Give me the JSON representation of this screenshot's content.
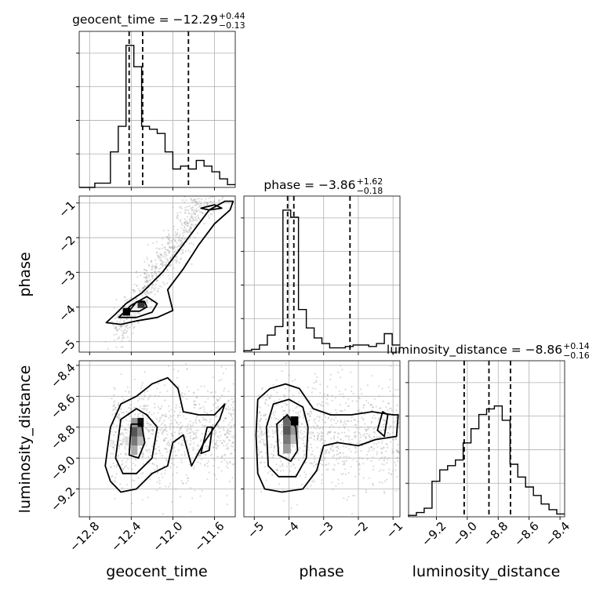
{
  "chart_data": {
    "type": "corner",
    "parameters": [
      "geocent_time",
      "phase",
      "luminosity_distance"
    ],
    "axis_labels": {
      "x": [
        "geocent_time",
        "phase",
        "luminosity_distance"
      ],
      "y": [
        "phase",
        "luminosity_distance"
      ]
    },
    "titles": [
      {
        "param": "geocent_time",
        "text": "geocent_time = −12.29",
        "median": -12.29,
        "plus": "+0.44",
        "minus": "−0.13"
      },
      {
        "param": "phase",
        "text": "phase = −3.86",
        "median": -3.86,
        "plus": "+1.62",
        "minus": "−0.18"
      },
      {
        "param": "luminosity_distance",
        "text": "luminosity_distance = −8.86",
        "median": -8.86,
        "plus": "+0.14",
        "minus": "−0.16"
      }
    ],
    "ranges": {
      "geocent_time": [
        -12.9,
        -11.4
      ],
      "phase": [
        -5.3,
        -0.8
      ],
      "luminosity_distance": [
        -9.38,
        -8.37
      ]
    },
    "ticks": {
      "geocent_time": {
        "values": [
          -12.8,
          -12.4,
          -12.0,
          -11.6
        ],
        "labels": [
          "−12.8",
          "−12.4",
          "−12.0",
          "−11.6"
        ]
      },
      "phase": {
        "values": [
          -5,
          -4,
          -3,
          -2,
          -1
        ],
        "labels": [
          "−5",
          "−4",
          "−3",
          "−2",
          "−1"
        ]
      },
      "luminosity_distance": {
        "values": [
          -9.2,
          -9.0,
          -8.8,
          -8.6,
          -8.4
        ],
        "labels": [
          "−9.2",
          "−9.0",
          "−8.8",
          "−8.6",
          "−8.4"
        ]
      }
    },
    "quantiles": {
      "geocent_time": [
        -12.42,
        -12.29,
        -11.85
      ],
      "phase": [
        -4.04,
        -3.86,
        -2.24
      ],
      "luminosity_distance": [
        -9.02,
        -8.86,
        -8.72
      ]
    },
    "histograms": {
      "geocent_time": {
        "edges": [
          -12.9,
          -12.825,
          -12.75,
          -12.675,
          -12.6,
          -12.525,
          -12.45,
          -12.375,
          -12.3,
          -12.225,
          -12.15,
          -12.075,
          -12.0,
          -11.925,
          -11.85,
          -11.775,
          -11.7,
          -11.625,
          -11.55,
          -11.475,
          -11.4
        ],
        "counts": [
          0.0,
          0.0,
          0.03,
          0.03,
          0.25,
          0.43,
          1.0,
          0.85,
          0.43,
          0.41,
          0.38,
          0.25,
          0.13,
          0.15,
          0.13,
          0.19,
          0.15,
          0.11,
          0.06,
          0.02
        ]
      },
      "phase": {
        "edges": [
          -5.3,
          -5.075,
          -4.85,
          -4.625,
          -4.4,
          -4.175,
          -3.95,
          -3.725,
          -3.5,
          -3.275,
          -3.05,
          -2.825,
          -2.6,
          -2.375,
          -2.15,
          -1.925,
          -1.7,
          -1.475,
          -1.25,
          -1.025,
          -0.8
        ],
        "counts": [
          0.01,
          0.02,
          0.05,
          0.12,
          0.18,
          1.0,
          0.95,
          0.3,
          0.17,
          0.1,
          0.06,
          0.03,
          0.03,
          0.04,
          0.05,
          0.05,
          0.04,
          0.06,
          0.13,
          0.05
        ]
      },
      "luminosity_distance": {
        "edges": [
          -9.38,
          -9.3295,
          -9.279,
          -9.2285,
          -9.178,
          -9.1275,
          -9.077,
          -9.0265,
          -8.976,
          -8.9255,
          -8.875,
          -8.8245,
          -8.774,
          -8.7235,
          -8.673,
          -8.6225,
          -8.572,
          -8.5215,
          -8.471,
          -8.4205,
          -8.37
        ],
        "counts": [
          0.01,
          0.03,
          0.06,
          0.25,
          0.33,
          0.36,
          0.4,
          0.52,
          0.62,
          0.72,
          0.76,
          0.78,
          0.68,
          0.37,
          0.28,
          0.21,
          0.15,
          0.09,
          0.05,
          0.02
        ]
      }
    },
    "grid": true
  }
}
